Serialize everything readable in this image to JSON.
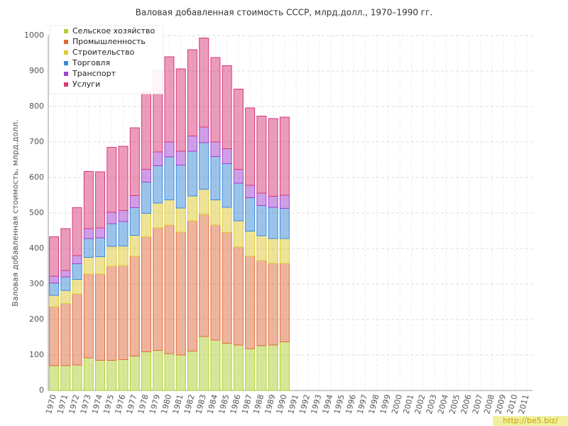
{
  "chart_data": {
    "type": "stacked_bar",
    "title": "Валовая добавленная стоимость СССР, млрд.долл., 1970–1990 гг.",
    "y_label": "Валовая добавленная стоимость, млрд.долл.",
    "watermark": "http://be5.biz/",
    "categories": [
      "1970",
      "1971",
      "1972",
      "1973",
      "1974",
      "1975",
      "1976",
      "1977",
      "1978",
      "1979",
      "1980",
      "1981",
      "1982",
      "1983",
      "1984",
      "1985",
      "1986",
      "1987",
      "1988",
      "1989",
      "1990",
      "1991",
      "1992",
      "1993",
      "1994",
      "1995",
      "1996",
      "1997",
      "1998",
      "1999",
      "2000",
      "2001",
      "2002",
      "2003",
      "2004",
      "2005",
      "2006",
      "2007",
      "2008",
      "2009",
      "2010",
      "2011"
    ],
    "series": [
      {
        "name": "Сельское хозяйство",
        "color": "#b0d030",
        "values": [
          70,
          70,
          72,
          92,
          85,
          85,
          87,
          97,
          109,
          113,
          104,
          100,
          111,
          152,
          142,
          133,
          128,
          118,
          126,
          128,
          137,
          null,
          null,
          null,
          null,
          null,
          null,
          null,
          null,
          null,
          null,
          null,
          null,
          null,
          null,
          null,
          null,
          null,
          null,
          null,
          null,
          null
        ]
      },
      {
        "name": "Промышленность",
        "color": "#e06a3a",
        "values": [
          166,
          175,
          200,
          236,
          243,
          265,
          265,
          281,
          324,
          345,
          362,
          346,
          367,
          344,
          324,
          312,
          276,
          260,
          240,
          230,
          221,
          null,
          null,
          null,
          null,
          null,
          null,
          null,
          null,
          null,
          null,
          null,
          null,
          null,
          null,
          null,
          null,
          null,
          null,
          null,
          null,
          null
        ]
      },
      {
        "name": "Строительство",
        "color": "#e0c830",
        "values": [
          32,
          37,
          41,
          47,
          49,
          56,
          55,
          59,
          66,
          70,
          71,
          68,
          70,
          71,
          71,
          71,
          74,
          71,
          70,
          70,
          70,
          null,
          null,
          null,
          null,
          null,
          null,
          null,
          null,
          null,
          null,
          null,
          null,
          null,
          null,
          null,
          null,
          null,
          null,
          null,
          null,
          null
        ]
      },
      {
        "name": "Торговля",
        "color": "#3a8ad8",
        "values": [
          35,
          38,
          44,
          53,
          53,
          64,
          69,
          78,
          88,
          105,
          121,
          121,
          126,
          131,
          122,
          123,
          106,
          94,
          85,
          88,
          85,
          null,
          null,
          null,
          null,
          null,
          null,
          null,
          null,
          null,
          null,
          null,
          null,
          null,
          null,
          null,
          null,
          null,
          null,
          null,
          null,
          null
        ]
      },
      {
        "name": "Транспорт",
        "color": "#a040d0",
        "values": [
          19,
          18,
          23,
          28,
          28,
          32,
          31,
          34,
          36,
          39,
          42,
          39,
          43,
          44,
          41,
          42,
          39,
          35,
          35,
          31,
          37,
          null,
          null,
          null,
          null,
          null,
          null,
          null,
          null,
          null,
          null,
          null,
          null,
          null,
          null,
          null,
          null,
          null,
          null,
          null,
          null,
          null
        ]
      },
      {
        "name": "Услуги",
        "color": "#d83878",
        "values": [
          111,
          118,
          135,
          161,
          158,
          183,
          181,
          191,
          218,
          230,
          240,
          232,
          243,
          251,
          238,
          234,
          226,
          218,
          217,
          219,
          220,
          null,
          null,
          null,
          null,
          null,
          null,
          null,
          null,
          null,
          null,
          null,
          null,
          null,
          null,
          null,
          null,
          null,
          null,
          null,
          null,
          null
        ]
      }
    ],
    "ylim": [
      0,
      1000
    ],
    "yticks": [
      0,
      100,
      200,
      300,
      400,
      500,
      600,
      700,
      800,
      900,
      1000
    ],
    "grid": true,
    "legend": "top-left"
  }
}
